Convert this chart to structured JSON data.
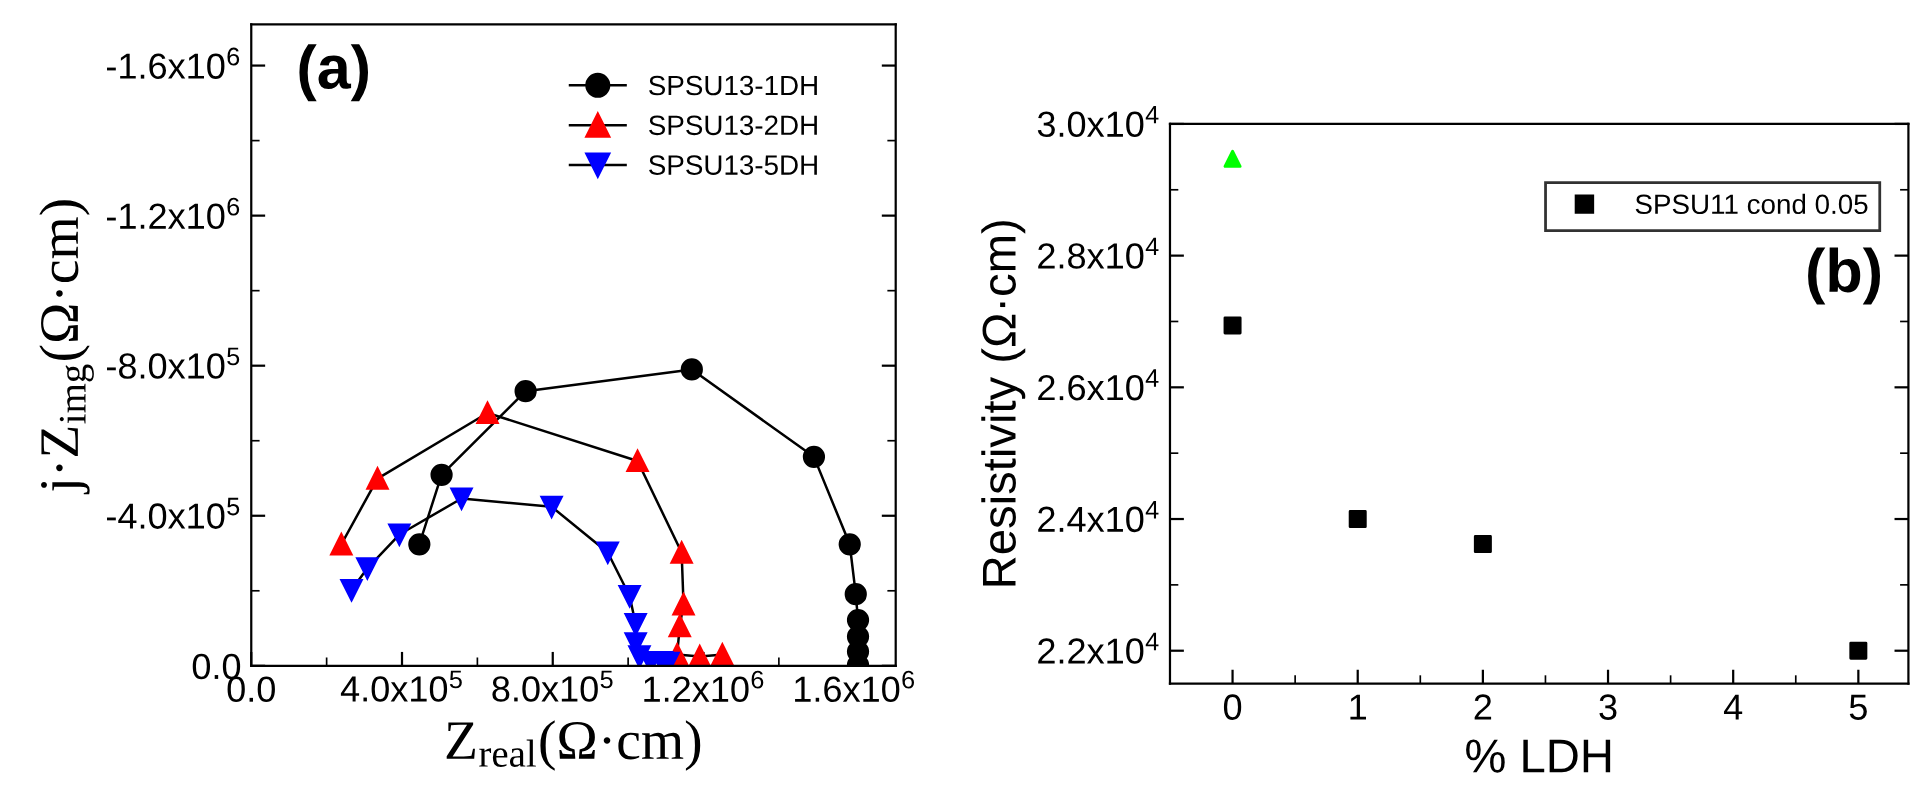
{
  "chart_data": [
    {
      "type": "line",
      "xlabel": "Z$_{real}$(Ω·cm)",
      "ylabel": "j·Z$_{img}$(Ω·cm)",
      "annotations": [
        "(a)"
      ],
      "xlim": [
        0,
        1710000
      ],
      "ylim": [
        0,
        -1710000
      ],
      "xticks": [
        {
          "value": 0,
          "label": "0.0"
        },
        {
          "value": 400000,
          "label": "4.0x10$^{5}$"
        },
        {
          "value": 800000,
          "label": "8.0x10$^{5}$"
        },
        {
          "value": 1200000,
          "label": "1.2x10$^{6}$"
        },
        {
          "value": 1600000,
          "label": "1.6x10$^{6}$"
        }
      ],
      "yticks": [
        {
          "value": 0,
          "label": "0.0"
        },
        {
          "value": -400000,
          "label": "-4.0x10$^{5}$"
        },
        {
          "value": -800000,
          "label": "-8.0x10$^{5}$"
        },
        {
          "value": -1200000,
          "label": "-1.2x10$^{6}$"
        },
        {
          "value": -1600000,
          "label": "-1.6x10$^{6}$"
        }
      ],
      "legend": "top right",
      "line_style": "solid",
      "grid": false,
      "series": [
        {
          "name": "SPSU13-1DH",
          "color": "#000000",
          "marker": "circle",
          "x": [
            446000,
            505000,
            728000,
            1169000,
            1493000,
            1588000,
            1604000,
            1610000,
            1610000,
            1610000,
            1610000
          ],
          "values": [
            -324000,
            -509000,
            -732000,
            -790000,
            -557000,
            -324000,
            -191000,
            -122000,
            -78000,
            -38000,
            -2000
          ]
        },
        {
          "name": "SPSU13-2DH",
          "color": "#ff0000",
          "marker": "triangle",
          "x": [
            239000,
            335000,
            627000,
            1025000,
            1142000,
            1147000,
            1137000,
            1130000,
            1190000,
            1250000
          ],
          "values": [
            -324000,
            -499000,
            -674000,
            -546000,
            -302000,
            -164000,
            -106000,
            -30000,
            -25000,
            -30000
          ]
        },
        {
          "name": "SPSU13-5DH",
          "color": "#0000ff",
          "marker": "triangle_down",
          "x": [
            266000,
            308000,
            393000,
            558000,
            797000,
            946000,
            1004000,
            1020000,
            1020000,
            1030000,
            1060000,
            1090000,
            1107000
          ],
          "values": [
            -202000,
            -260000,
            -350000,
            -446000,
            -424000,
            -302000,
            -186000,
            -111000,
            -60000,
            -25000,
            -10000,
            -10000,
            -8000
          ]
        }
      ]
    },
    {
      "type": "scatter",
      "xlabel": "% LDH",
      "ylabel": "Resistivity (Ω·cm)",
      "annotations": [
        "(b)"
      ],
      "xlim": [
        -0.5,
        5.4
      ],
      "ylim": [
        21500,
        30000
      ],
      "xticks": [
        0,
        1,
        2,
        3,
        4,
        5
      ],
      "yticks": [
        {
          "value": 22000,
          "label": "2.2x10$^{4}$"
        },
        {
          "value": 24000,
          "label": "2.4x10$^{4}$"
        },
        {
          "value": 26000,
          "label": "2.6x10$^{4}$"
        },
        {
          "value": 28000,
          "label": "2.8x10$^{4}$"
        },
        {
          "value": 30000,
          "label": "3.0x10$^{4}$"
        }
      ],
      "legend": "top right",
      "grid": false,
      "series": [
        {
          "name": "SPSU11 cond 0.05",
          "color": "#000000",
          "marker": "square",
          "x": [
            0,
            1,
            2,
            5
          ],
          "values": [
            26940,
            24000,
            23620,
            22000
          ]
        },
        {
          "color": "#00ff00",
          "marker": "triangle",
          "x": [
            0
          ],
          "values": [
            29470
          ]
        }
      ]
    }
  ]
}
